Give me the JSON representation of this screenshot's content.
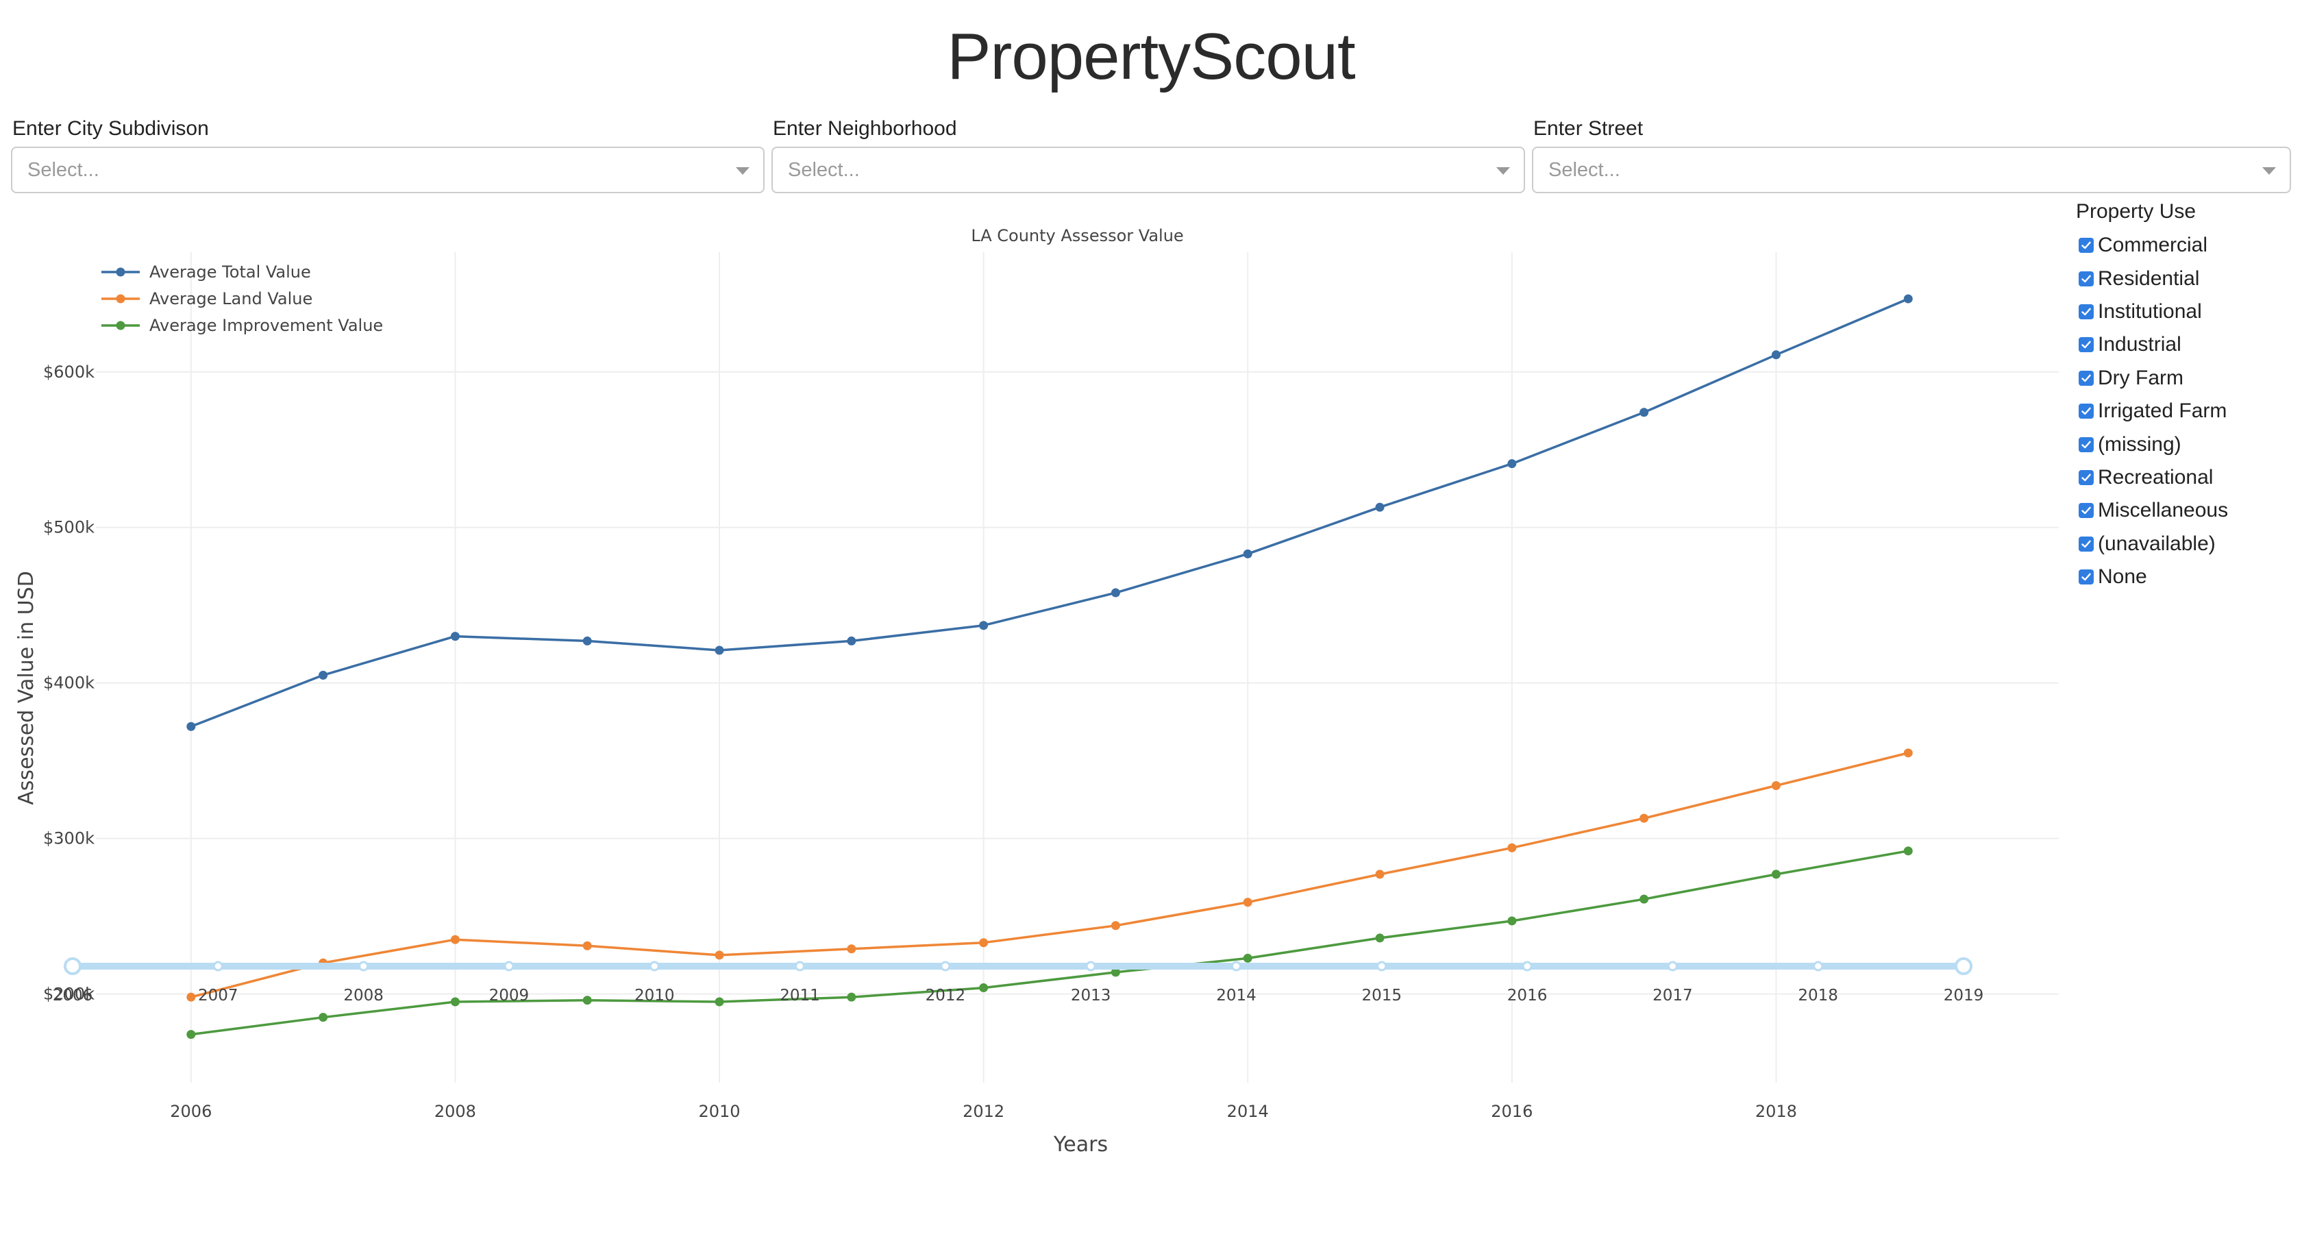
{
  "header": {
    "title": "PropertyScout"
  },
  "filters": [
    {
      "label": "Enter City Subdivison",
      "placeholder": "Select..."
    },
    {
      "label": "Enter Neighborhood",
      "placeholder": "Select..."
    },
    {
      "label": "Enter Street",
      "placeholder": "Select..."
    }
  ],
  "property_use": {
    "title": "Property Use",
    "options": [
      {
        "label": "Commercial",
        "checked": true
      },
      {
        "label": "Residential",
        "checked": true
      },
      {
        "label": "Institutional",
        "checked": true
      },
      {
        "label": "Industrial",
        "checked": true
      },
      {
        "label": "Dry Farm",
        "checked": true
      },
      {
        "label": "Irrigated Farm",
        "checked": true
      },
      {
        "label": "(missing)",
        "checked": true
      },
      {
        "label": "Recreational",
        "checked": true
      },
      {
        "label": "Miscellaneous",
        "checked": true
      },
      {
        "label": "(unavailable)",
        "checked": true
      },
      {
        "label": "None",
        "checked": true
      }
    ]
  },
  "year_slider": {
    "marks": [
      "2006",
      "2007",
      "2008",
      "2009",
      "2010",
      "2011",
      "2012",
      "2013",
      "2014",
      "2015",
      "2016",
      "2017",
      "2018",
      "2019"
    ],
    "range": [
      2006,
      2019
    ],
    "color": "#b9dcf3"
  },
  "chart_data": {
    "type": "line",
    "title": "LA County Assessor Value",
    "xlabel": "Years",
    "ylabel": "Assessed Value in USD",
    "x": [
      2006,
      2007,
      2008,
      2009,
      2010,
      2011,
      2012,
      2013,
      2014,
      2015,
      2016,
      2017,
      2018,
      2019
    ],
    "xticks": [
      2006,
      2008,
      2010,
      2012,
      2014,
      2016,
      2018
    ],
    "yticks": [
      {
        "value": 200000,
        "label": "$200k"
      },
      {
        "value": 300000,
        "label": "$300k"
      },
      {
        "value": 400000,
        "label": "$400k"
      },
      {
        "value": 500000,
        "label": "$500k"
      },
      {
        "value": 600000,
        "label": "$600k"
      }
    ],
    "xlim": [
      2005.28,
      2020.14
    ],
    "ylim": [
      143000,
      677000
    ],
    "grid": true,
    "legend_position": "top-left",
    "series": [
      {
        "name": "Average Total Value",
        "color": "#3a6ea5",
        "values": [
          372000,
          405000,
          430000,
          427000,
          421000,
          427000,
          437000,
          458000,
          483000,
          513000,
          541000,
          574000,
          611000,
          647000
        ]
      },
      {
        "name": "Average Land Value",
        "color": "#ef8636",
        "values": [
          198000,
          220000,
          235000,
          231000,
          225000,
          229000,
          233000,
          244000,
          259000,
          277000,
          294000,
          313000,
          334000,
          355000
        ]
      },
      {
        "name": "Average Improvement Value",
        "color": "#4d9a3f",
        "values": [
          174000,
          185000,
          195000,
          196000,
          195000,
          198000,
          204000,
          214000,
          223000,
          236000,
          247000,
          261000,
          277000,
          292000
        ]
      }
    ]
  }
}
